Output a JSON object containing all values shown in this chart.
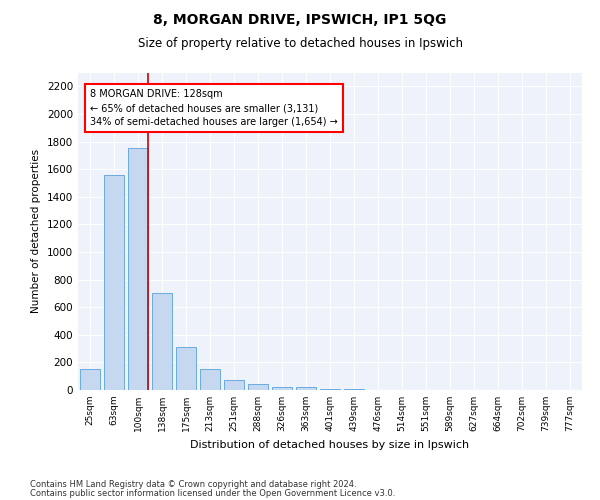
{
  "title1": "8, MORGAN DRIVE, IPSWICH, IP1 5QG",
  "title2": "Size of property relative to detached houses in Ipswich",
  "xlabel": "Distribution of detached houses by size in Ipswich",
  "ylabel": "Number of detached properties",
  "categories": [
    "25sqm",
    "63sqm",
    "100sqm",
    "138sqm",
    "175sqm",
    "213sqm",
    "251sqm",
    "288sqm",
    "326sqm",
    "363sqm",
    "401sqm",
    "439sqm",
    "476sqm",
    "514sqm",
    "551sqm",
    "589sqm",
    "627sqm",
    "664sqm",
    "702sqm",
    "739sqm",
    "777sqm"
  ],
  "values": [
    150,
    1555,
    1750,
    700,
    310,
    155,
    75,
    40,
    25,
    20,
    10,
    5,
    3,
    2,
    1,
    1,
    1,
    0,
    0,
    0,
    0
  ],
  "bar_color": "#c5d8f0",
  "bar_edge_color": "#6aaae0",
  "highlight_bar_index": 2,
  "highlight_color": "#cc0000",
  "annotation_text": "8 MORGAN DRIVE: 128sqm\n← 65% of detached houses are smaller (3,131)\n34% of semi-detached houses are larger (1,654) →",
  "ylim": [
    0,
    2300
  ],
  "yticks": [
    0,
    200,
    400,
    600,
    800,
    1000,
    1200,
    1400,
    1600,
    1800,
    2000,
    2200
  ],
  "footer1": "Contains HM Land Registry data © Crown copyright and database right 2024.",
  "footer2": "Contains public sector information licensed under the Open Government Licence v3.0.",
  "bg_color": "#ffffff",
  "plot_bg_color": "#eef2fa"
}
